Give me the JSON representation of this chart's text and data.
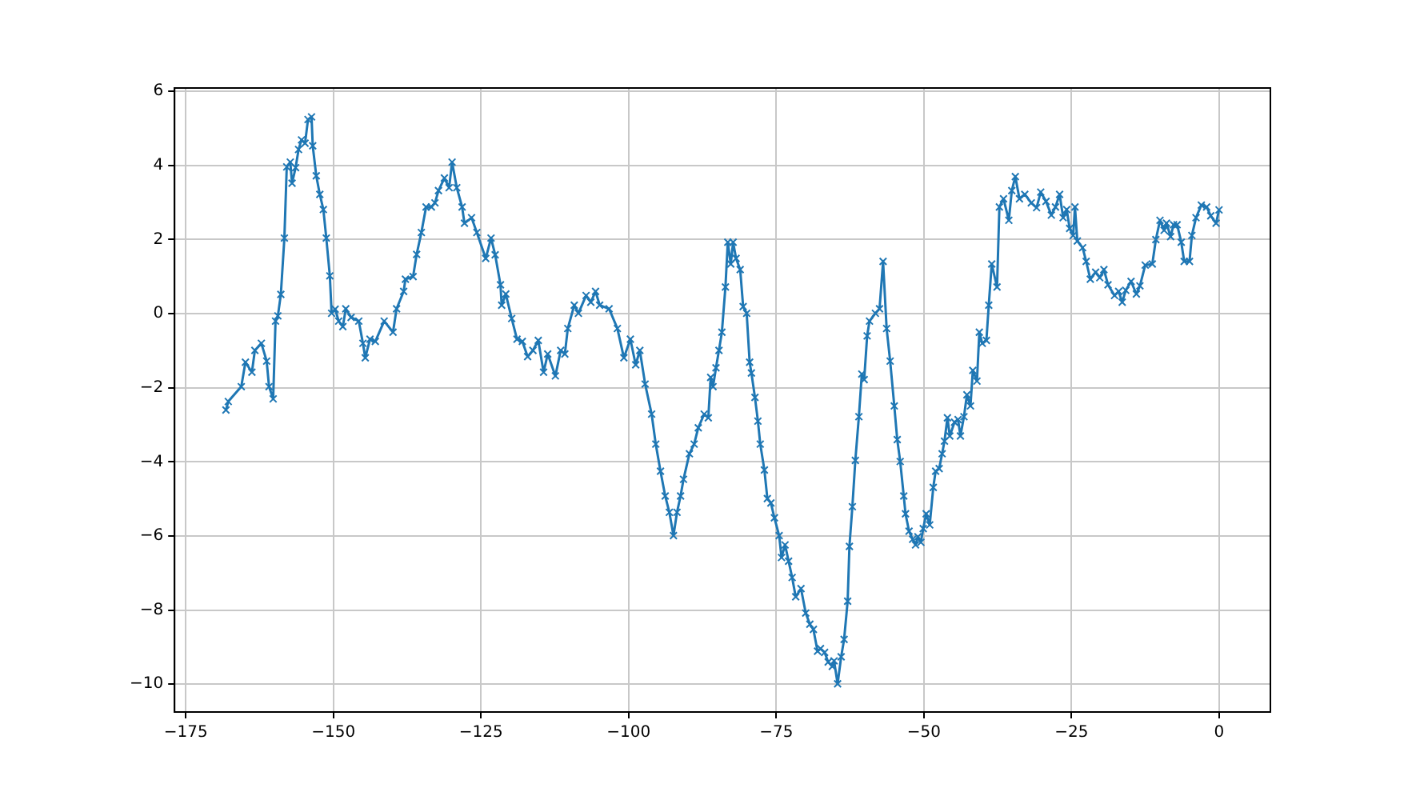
{
  "chart_data": {
    "type": "line",
    "x": [
      -168.2,
      -167.8,
      -165.6,
      -164.9,
      -163.8,
      -163.3,
      -162.2,
      -161.3,
      -160.9,
      -160.2,
      -159.8,
      -159.4,
      -158.9,
      -158.3,
      -157.9,
      -157.3,
      -157.0,
      -156.4,
      -155.9,
      -155.4,
      -154.8,
      -154.3,
      -153.7,
      -153.5,
      -152.9,
      -152.3,
      -151.7,
      -151.2,
      -150.6,
      -150.3,
      -149.7,
      -149.1,
      -148.4,
      -147.9,
      -147.0,
      -145.7,
      -145.0,
      -144.6,
      -143.8,
      -142.9,
      -141.4,
      -139.9,
      -139.3,
      -138.1,
      -137.8,
      -136.5,
      -135.9,
      -135.1,
      -134.3,
      -133.4,
      -132.8,
      -132.2,
      -131.2,
      -130.4,
      -129.9,
      -129.1,
      -128.2,
      -127.8,
      -126.6,
      -125.7,
      -124.2,
      -123.3,
      -122.6,
      -121.7,
      -121.5,
      -120.8,
      -119.8,
      -118.9,
      -118.0,
      -117.1,
      -116.2,
      -115.3,
      -114.4,
      -113.7,
      -112.4,
      -111.5,
      -110.8,
      -110.3,
      -109.2,
      -108.5,
      -107.2,
      -106.4,
      -105.6,
      -104.9,
      -103.3,
      -101.9,
      -100.8,
      -99.7,
      -98.8,
      -98.1,
      -97.2,
      -96.1,
      -95.4,
      -94.6,
      -93.8,
      -93.1,
      -92.4,
      -91.8,
      -91.2,
      -90.7,
      -89.7,
      -88.9,
      -88.2,
      -87.2,
      -86.5,
      -86.1,
      -85.7,
      -85.2,
      -84.7,
      -84.2,
      -83.6,
      -83.2,
      -82.7,
      -82.3,
      -81.8,
      -81.1,
      -80.6,
      -80.0,
      -79.5,
      -79.2,
      -78.6,
      -78.1,
      -77.7,
      -77.0,
      -76.5,
      -75.9,
      -75.3,
      -74.5,
      -74.1,
      -73.5,
      -72.9,
      -72.3,
      -71.7,
      -70.8,
      -70.0,
      -69.3,
      -68.7,
      -68.0,
      -67.5,
      -66.8,
      -66.2,
      -65.5,
      -65.2,
      -64.6,
      -64.0,
      -63.5,
      -62.9,
      -62.6,
      -62.1,
      -61.6,
      -61.0,
      -60.5,
      -60.1,
      -59.6,
      -59.2,
      -58.2,
      -57.5,
      -56.9,
      -56.3,
      -55.7,
      -55.0,
      -54.5,
      -54.0,
      -53.4,
      -53.1,
      -52.5,
      -51.9,
      -51.4,
      -51.0,
      -50.5,
      -50.1,
      -49.6,
      -49.0,
      -48.4,
      -48.0,
      -47.4,
      -46.9,
      -46.5,
      -46.0,
      -45.6,
      -44.8,
      -44.2,
      -43.8,
      -43.2,
      -42.7,
      -42.1,
      -41.7,
      -41.0,
      -40.6,
      -40.1,
      -39.4,
      -39.0,
      -38.5,
      -37.6,
      -37.2,
      -36.5,
      -35.6,
      -35.1,
      -34.5,
      -33.8,
      -32.9,
      -31.8,
      -30.9,
      -30.2,
      -29.3,
      -28.4,
      -27.7,
      -27.0,
      -26.4,
      -25.8,
      -25.3,
      -24.7,
      -24.4,
      -24.0,
      -23.1,
      -22.5,
      -21.8,
      -20.9,
      -20.2,
      -19.5,
      -18.8,
      -17.7,
      -17.0,
      -16.4,
      -15.8,
      -14.9,
      -14.0,
      -13.4,
      -12.5,
      -11.3,
      -10.7,
      -10.0,
      -9.3,
      -8.9,
      -8.2,
      -7.7,
      -7.1,
      -6.4,
      -5.9,
      -5.0,
      -4.6,
      -3.9,
      -3.0,
      -2.1,
      -1.4,
      -0.5,
      0.0
    ],
    "series": [
      {
        "color": "#1f77b4",
        "values": [
          -2.6,
          -2.37,
          -1.97,
          -1.31,
          -1.58,
          -0.99,
          -0.8,
          -1.28,
          -1.97,
          -2.3,
          -0.2,
          -0.06,
          0.52,
          2.04,
          3.96,
          4.09,
          3.52,
          3.94,
          4.43,
          4.69,
          4.6,
          5.24,
          5.31,
          4.53,
          3.72,
          3.22,
          2.81,
          2.04,
          1.02,
          0.01,
          0.12,
          -0.2,
          -0.35,
          0.13,
          -0.1,
          -0.2,
          -0.8,
          -1.19,
          -0.69,
          -0.75,
          -0.2,
          -0.5,
          0.13,
          0.6,
          0.93,
          1.0,
          1.6,
          2.19,
          2.88,
          2.88,
          2.99,
          3.32,
          3.66,
          3.4,
          4.09,
          3.4,
          2.88,
          2.44,
          2.59,
          2.19,
          1.49,
          2.04,
          1.59,
          0.78,
          0.23,
          0.53,
          -0.13,
          -0.69,
          -0.75,
          -1.16,
          -0.99,
          -0.72,
          -1.58,
          -1.09,
          -1.68,
          -0.99,
          -1.09,
          -0.4,
          0.23,
          0.01,
          0.49,
          0.31,
          0.6,
          0.23,
          0.13,
          -0.4,
          -1.19,
          -0.69,
          -1.38,
          -0.99,
          -1.9,
          -2.71,
          -3.52,
          -4.25,
          -4.92,
          -5.36,
          -5.99,
          -5.36,
          -4.92,
          -4.47,
          -3.78,
          -3.52,
          -3.08,
          -2.71,
          -2.81,
          -1.72,
          -1.97,
          -1.46,
          -0.99,
          -0.5,
          0.72,
          1.93,
          1.34,
          1.93,
          1.49,
          1.19,
          0.19,
          0.01,
          -1.31,
          -1.6,
          -2.26,
          -2.9,
          -3.52,
          -4.22,
          -4.99,
          -5.11,
          -5.51,
          -5.99,
          -6.58,
          -6.24,
          -6.68,
          -7.12,
          -7.64,
          -7.42,
          -8.08,
          -8.38,
          -8.52,
          -9.11,
          -9.04,
          -9.14,
          -9.4,
          -9.52,
          -9.37,
          -9.99,
          -9.26,
          -8.79,
          -7.76,
          -6.28,
          -5.21,
          -3.96,
          -2.78,
          -1.63,
          -1.78,
          -0.6,
          -0.2,
          0.01,
          0.13,
          1.41,
          -0.4,
          -1.28,
          -2.49,
          -3.4,
          -3.99,
          -4.92,
          -5.4,
          -5.87,
          -6.09,
          -6.24,
          -6.02,
          -6.17,
          -5.8,
          -5.4,
          -5.7,
          -4.69,
          -4.25,
          -4.18,
          -3.78,
          -3.44,
          -2.81,
          -3.3,
          -2.93,
          -2.86,
          -3.3,
          -2.78,
          -2.19,
          -2.49,
          -1.53,
          -1.82,
          -0.5,
          -0.8,
          -0.72,
          0.23,
          1.34,
          0.72,
          2.88,
          3.1,
          2.52,
          3.32,
          3.7,
          3.1,
          3.22,
          2.99,
          2.86,
          3.28,
          3.03,
          2.66,
          2.88,
          3.22,
          2.59,
          2.81,
          2.3,
          2.11,
          2.88,
          1.96,
          1.78,
          1.41,
          0.93,
          1.12,
          0.97,
          1.19,
          0.78,
          0.49,
          0.6,
          0.31,
          0.63,
          0.87,
          0.53,
          0.75,
          1.31,
          1.34,
          2.0,
          2.52,
          2.25,
          2.44,
          2.08,
          2.4,
          2.4,
          1.93,
          1.41,
          1.41,
          2.11,
          2.59,
          2.93,
          2.88,
          2.64,
          2.44,
          2.8
        ]
      }
    ],
    "xlim": [
      -176.9,
      8.7
    ],
    "ylim": [
      -10.75,
      6.09
    ],
    "xticks": [
      {
        "value": -175,
        "label": "−175"
      },
      {
        "value": -150,
        "label": "−150"
      },
      {
        "value": -125,
        "label": "−125"
      },
      {
        "value": -100,
        "label": "−100"
      },
      {
        "value": -75,
        "label": "−75"
      },
      {
        "value": -50,
        "label": "−50"
      },
      {
        "value": -25,
        "label": "−25"
      },
      0
    ],
    "yticks": [
      {
        "value": -10,
        "label": "−10"
      },
      {
        "value": -8,
        "label": "−8"
      },
      {
        "value": -6,
        "label": "−6"
      },
      {
        "value": -4,
        "label": "−4"
      },
      {
        "value": -2,
        "label": "−2"
      },
      0,
      2,
      4,
      6
    ],
    "grid": true,
    "marker": "cross",
    "line_style": "solid"
  }
}
